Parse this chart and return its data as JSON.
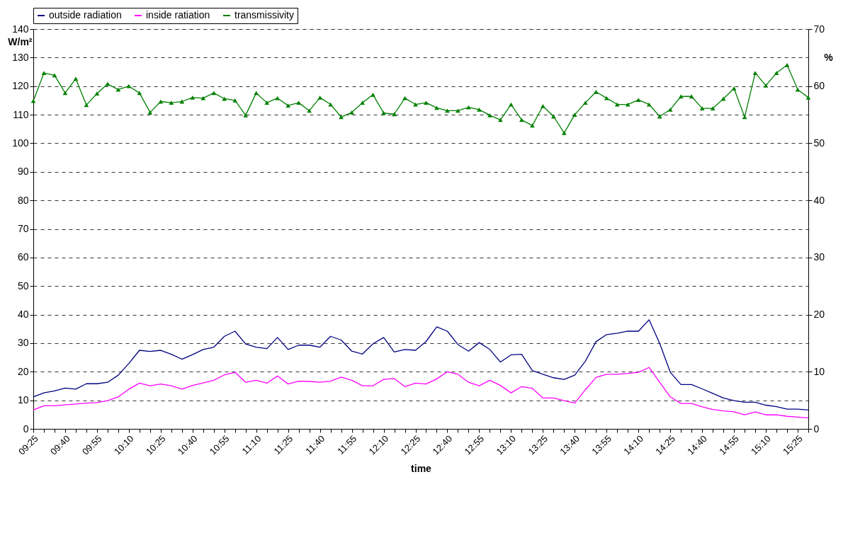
{
  "chart_data": {
    "type": "line",
    "categories": [
      "09:25",
      null,
      null,
      "09:40",
      null,
      null,
      "09:55",
      null,
      null,
      "10:10",
      null,
      null,
      "10:25",
      null,
      null,
      "10:40",
      null,
      null,
      "10:55",
      null,
      null,
      "11:10",
      null,
      null,
      "11:25",
      null,
      null,
      "11:40",
      null,
      null,
      "11:55",
      null,
      null,
      "12:10",
      null,
      null,
      "12:25",
      null,
      null,
      "12:40",
      null,
      null,
      "12:55",
      null,
      null,
      "13:10",
      null,
      null,
      "13:25",
      null,
      null,
      "13:40",
      null,
      null,
      "13:55",
      null,
      null,
      "14:10",
      null,
      null,
      "14:25",
      null,
      null,
      "14:40",
      null,
      null,
      "14:55",
      null,
      null,
      "15:10",
      null,
      null,
      "15:25",
      null
    ],
    "series": [
      {
        "name": "outside radiation",
        "color": "#000080",
        "values": [
          11.2,
          12.6,
          13.3,
          14.3,
          13.9,
          15.8,
          15.8,
          16.3,
          18.8,
          22.9,
          27.5,
          27.1,
          27.5,
          26.1,
          24.4,
          26.0,
          27.8,
          28.6,
          32.4,
          34.2,
          29.7,
          28.6,
          28.1,
          32.0,
          27.8,
          29.3,
          29.3,
          28.6,
          32.4,
          31.1,
          27.2,
          26.2,
          29.8,
          32.0,
          26.9,
          27.8,
          27.5,
          30.6,
          35.7,
          34.2,
          29.5,
          27.2,
          30.2,
          27.8,
          23.4,
          25.9,
          26.1,
          20.4,
          19.1,
          17.9,
          17.3,
          18.8,
          23.7,
          30.5,
          33.0,
          33.5,
          34.2,
          34.2,
          38.2,
          29.9,
          19.8,
          15.5,
          15.5,
          14.0,
          12.4,
          10.8,
          9.9,
          9.3,
          9.3,
          8.3,
          7.8,
          6.9,
          6.9,
          6.6
        ]
      },
      {
        "name": "inside ratiation",
        "color": "#ff00ff",
        "values": [
          6.6,
          8.1,
          8.1,
          8.4,
          8.7,
          9.0,
          9.2,
          9.9,
          11.2,
          13.9,
          16.0,
          15.1,
          15.7,
          15.1,
          13.9,
          15.2,
          16.1,
          17.0,
          18.9,
          19.8,
          16.3,
          17.0,
          16.0,
          18.5,
          15.7,
          16.7,
          16.6,
          16.3,
          16.7,
          18.1,
          17.0,
          15.1,
          15.1,
          17.3,
          17.6,
          14.8,
          16.0,
          15.7,
          17.5,
          20.0,
          19.1,
          16.3,
          15.1,
          17.0,
          15.2,
          12.6,
          14.8,
          14.2,
          10.8,
          10.8,
          9.9,
          9.0,
          13.7,
          18.0,
          19.1,
          19.1,
          19.4,
          19.8,
          21.5,
          16.3,
          11.2,
          8.9,
          8.9,
          7.7,
          6.8,
          6.3,
          6.0,
          4.9,
          5.9,
          4.9,
          4.9,
          4.4,
          4.1,
          3.8
        ]
      },
      {
        "name": "transmissivity",
        "color": "#008000",
        "axis": "y2",
        "marker": "triangle",
        "values": [
          57.4,
          62.3,
          61.9,
          58.8,
          61.3,
          56.7,
          58.7,
          60.4,
          59.4,
          60.0,
          58.8,
          55.4,
          57.3,
          57.1,
          57.3,
          58.0,
          57.9,
          58.8,
          57.8,
          57.5,
          54.9,
          58.8,
          57.1,
          57.9,
          56.6,
          57.1,
          55.7,
          58.0,
          56.8,
          54.6,
          55.4,
          57.1,
          58.5,
          55.3,
          55.1,
          57.9,
          56.8,
          57.1,
          56.2,
          55.7,
          55.7,
          56.3,
          55.9,
          54.9,
          54.1,
          56.8,
          54.1,
          53.1,
          56.5,
          54.7,
          51.8,
          55.0,
          57.1,
          59.0,
          57.9,
          56.8,
          56.8,
          57.6,
          56.8,
          54.7,
          55.9,
          58.2,
          58.2,
          56.1,
          56.1,
          57.8,
          59.6,
          54.6,
          62.3,
          60.1,
          62.3,
          63.7,
          59.4,
          58.0
        ]
      }
    ],
    "xlabel": "time",
    "ylabel": "W/m²",
    "y2label": "%",
    "ylim": [
      0,
      140
    ],
    "yticks": [
      0,
      10,
      20,
      30,
      40,
      50,
      60,
      70,
      80,
      90,
      100,
      110,
      120,
      130,
      140
    ],
    "y2lim": [
      0,
      70
    ],
    "y2ticks": [
      0,
      10,
      20,
      30,
      40,
      50,
      60,
      70
    ],
    "grid": "y",
    "legend": "top",
    "marker": "none",
    "line_style": "solid"
  }
}
